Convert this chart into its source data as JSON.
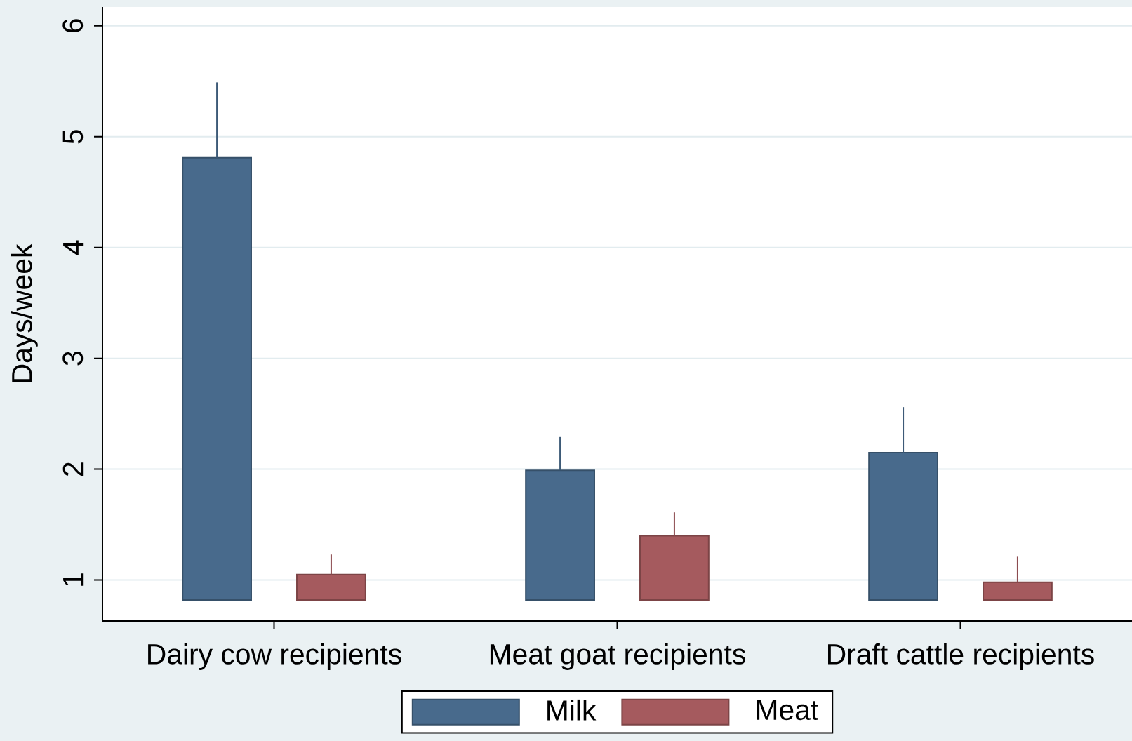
{
  "chart_data": {
    "type": "bar",
    "ylabel": "Days/week",
    "categories": [
      "Dairy cow recipients",
      "Meat goat recipients",
      "Draft cattle recipients"
    ],
    "series": [
      {
        "name": "Milk",
        "color": "#486a8c",
        "base": [
          0.82,
          0.82,
          0.82
        ],
        "values": [
          3.99,
          1.17,
          1.33
        ],
        "errors": [
          [
            4.81,
            5.49
          ],
          [
            1.99,
            2.29
          ],
          [
            2.15,
            2.56
          ]
        ]
      },
      {
        "name": "Meat",
        "color": "#a55a5e",
        "base": [
          0.82,
          0.82,
          0.82
        ],
        "values": [
          0.23,
          0.58,
          0.16
        ],
        "errors": [
          [
            1.05,
            1.23
          ],
          [
            1.4,
            1.61
          ],
          [
            0.98,
            1.21
          ]
        ]
      }
    ],
    "ylim": [
      0.63,
      6.17
    ],
    "yticks": [
      1,
      2,
      3,
      4,
      5,
      6
    ],
    "grid": "y",
    "legend": "bottom"
  }
}
